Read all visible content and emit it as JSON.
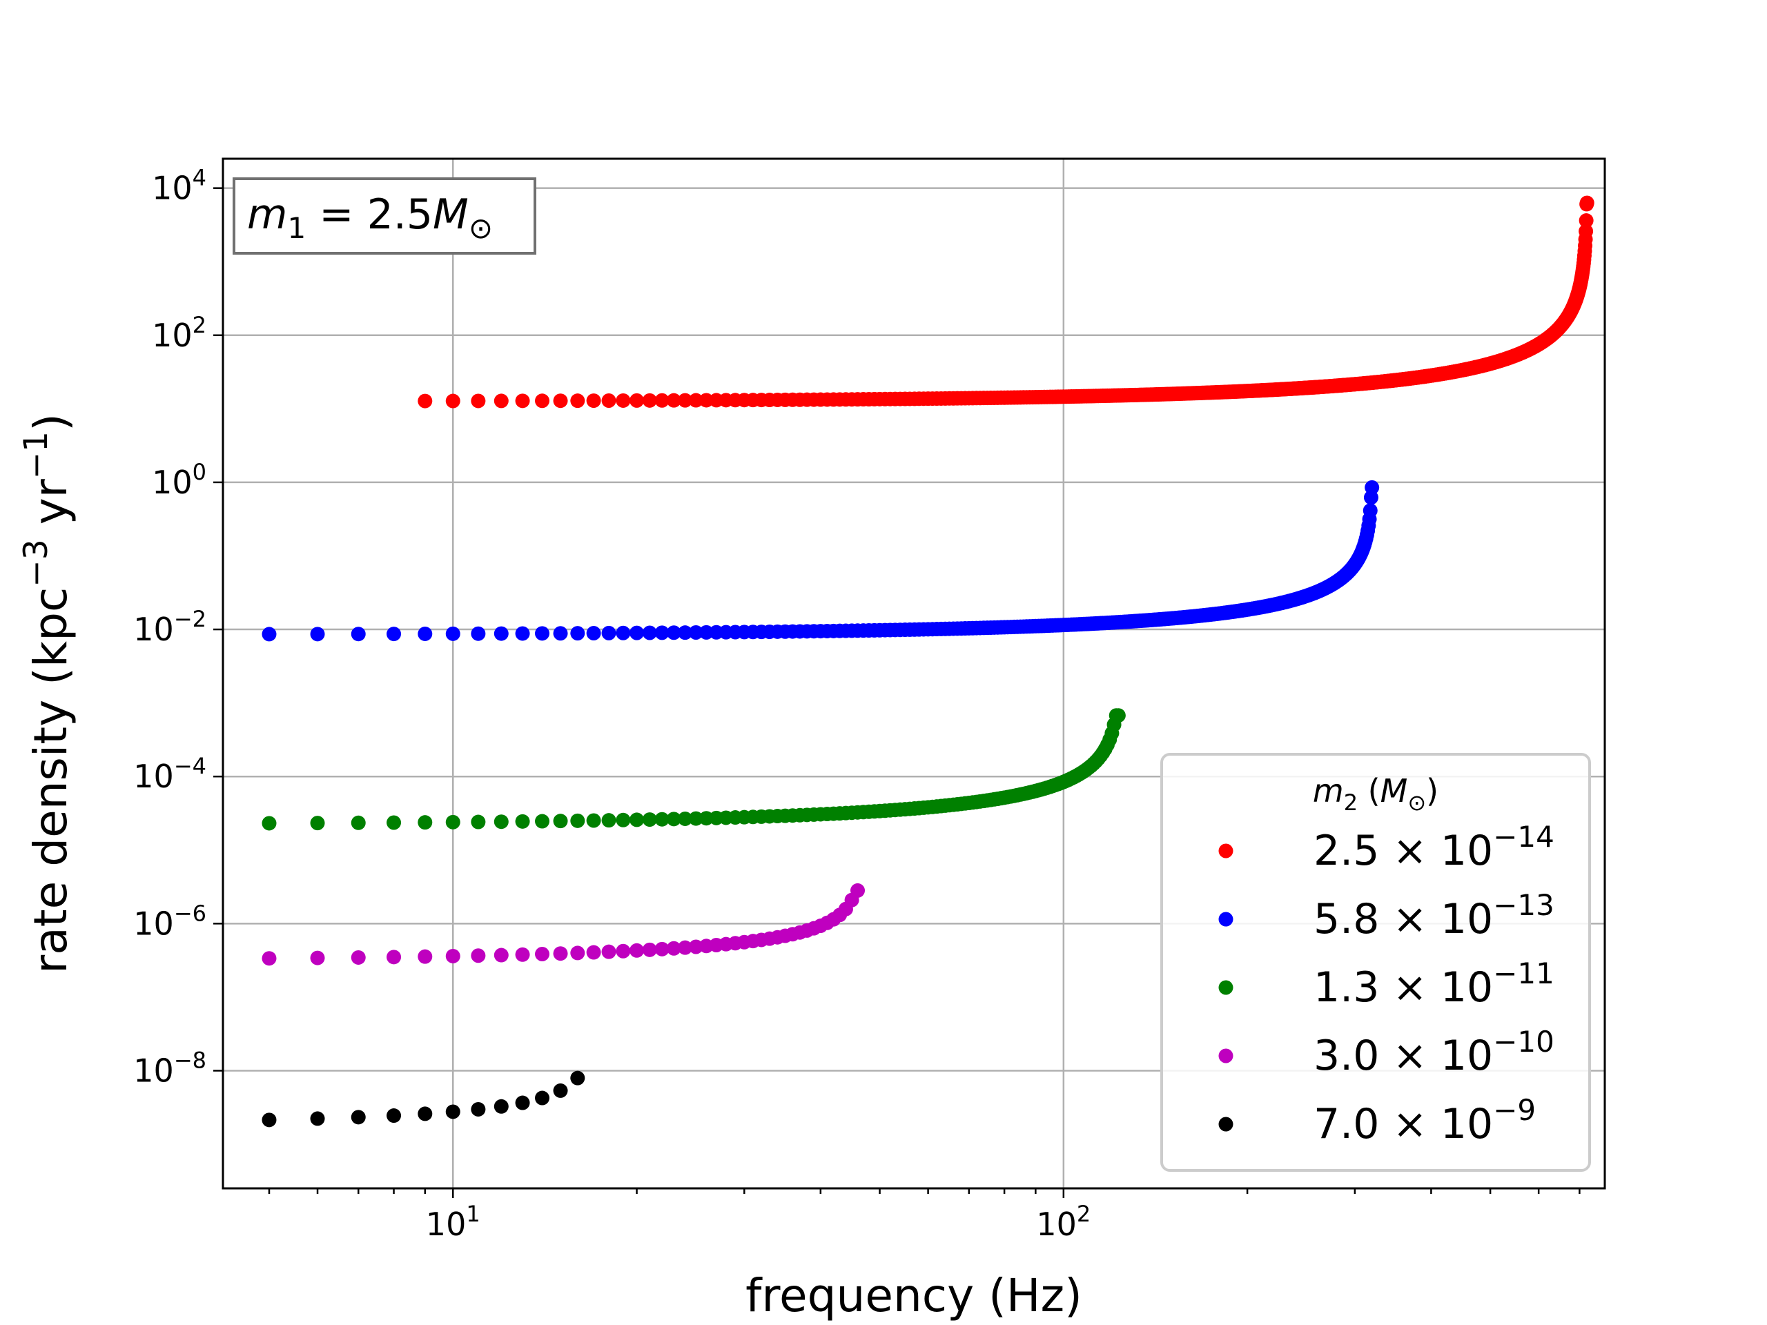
{
  "chart_data": {
    "type": "scatter",
    "title": "",
    "xlabel": "frequency (Hz)",
    "ylabel_parts": {
      "a": "rate density (kpc",
      "b": "−3",
      "c": " yr",
      "d": "−1",
      "e": ")"
    },
    "xscale": "log",
    "yscale": "log",
    "xlim": [
      4.2,
      770
    ],
    "ylim_exp": [
      -9.6,
      4.4
    ],
    "grid": true,
    "x_ticks": [
      {
        "base": "10",
        "exp": "1",
        "value": 10
      },
      {
        "base": "10",
        "exp": "2",
        "value": 100
      }
    ],
    "y_ticks": [
      {
        "base": "10",
        "exp": "4",
        "value_exp": 4
      },
      {
        "base": "10",
        "exp": "2",
        "value_exp": 2
      },
      {
        "base": "10",
        "exp": "0",
        "value_exp": 0
      },
      {
        "base": "10",
        "exp": "−2",
        "value_exp": -2
      },
      {
        "base": "10",
        "exp": "−4",
        "value_exp": -4
      },
      {
        "base": "10",
        "exp": "−6",
        "value_exp": -6
      },
      {
        "base": "10",
        "exp": "−8",
        "value_exp": -8
      }
    ],
    "annotation": {
      "m": "m",
      "sub": "1",
      "eq": " = 2.5",
      "M": "M",
      "sun": "⊙"
    },
    "legend": {
      "title_m": "m",
      "title_sub": "2",
      "title_open": " (",
      "title_M": "M",
      "title_sun": "⊙",
      "title_close": ")",
      "placement": "lower-right"
    },
    "series": [
      {
        "name": "2.5 × 10^-14",
        "mantissa": "2.5 × 10",
        "exp": "−14",
        "color": "#ff0000",
        "f_start": 9,
        "f_end": 720,
        "step": 1,
        "base_exp": 1.1,
        "coeff_exp": 1.0,
        "max_exp": 3.8
      },
      {
        "name": "5.8 × 10^-13",
        "mantissa": "5.8 × 10",
        "exp": "−13",
        "color": "#0000ff",
        "f_start": 5,
        "f_end": 320,
        "step": 1,
        "base_exp": -2.07,
        "coeff_exp": 0.8,
        "max_exp": -0.07
      },
      {
        "name": "1.3 × 10^-11",
        "mantissa": "1.3 × 10",
        "exp": "−11",
        "color": "#008000",
        "f_start": 5,
        "f_end": 123,
        "step": 1,
        "base_exp": -4.65,
        "coeff_exp": 0.8,
        "max_exp": -3.17
      },
      {
        "name": "3.0 × 10^-10",
        "mantissa": "3.0 × 10",
        "exp": "−10",
        "color": "#bf00bf",
        "f_start": 5,
        "f_end": 46,
        "step": 1,
        "base_exp": -6.5,
        "coeff_exp": 0.55,
        "max_exp": -5.55
      },
      {
        "name": "7.0 × 10^-9",
        "mantissa": "7.0 × 10",
        "exp": "−9",
        "color": "#000000",
        "f_start": 5,
        "f_end": 16,
        "step": 1,
        "base_exp": -8.74,
        "coeff_exp": 0.45,
        "max_exp": -8.1
      }
    ]
  }
}
